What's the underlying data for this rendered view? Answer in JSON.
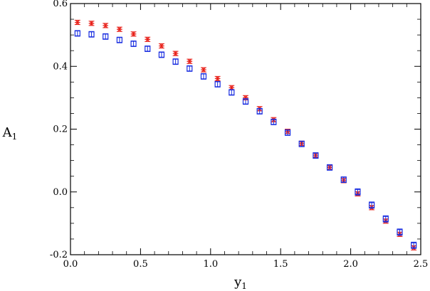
{
  "chart_data": {
    "type": "scatter",
    "title": "",
    "xlabel": {
      "main": "y",
      "sub": "1"
    },
    "ylabel": {
      "main": "A",
      "sub": "1"
    },
    "xlim": [
      0.0,
      2.5
    ],
    "ylim": [
      -0.2,
      0.6
    ],
    "x_ticks": [
      "0.0",
      "0.5",
      "1.0",
      "1.5",
      "2.0",
      "2.5"
    ],
    "y_ticks": [
      "-0.2",
      "0.0",
      "0.2",
      "0.4",
      "0.6"
    ],
    "grid": false,
    "legend": "none",
    "series": [
      {
        "marker": "star",
        "color": "#e8211a",
        "x": [
          0.05,
          0.15,
          0.25,
          0.35,
          0.45,
          0.55,
          0.65,
          0.75,
          0.85,
          0.95,
          1.05,
          1.15,
          1.25,
          1.35,
          1.45,
          1.55,
          1.65,
          1.75,
          1.85,
          1.95,
          2.05,
          2.15,
          2.25,
          2.35,
          2.45
        ],
        "y": [
          0.54,
          0.537,
          0.53,
          0.518,
          0.503,
          0.486,
          0.465,
          0.441,
          0.416,
          0.389,
          0.361,
          0.332,
          0.3,
          0.265,
          0.23,
          0.193,
          0.155,
          0.117,
          0.078,
          0.036,
          -0.006,
          -0.05,
          -0.093,
          -0.135,
          -0.178
        ],
        "err": [
          0.007,
          0.007,
          0.007,
          0.007,
          0.007,
          0.007,
          0.007,
          0.007,
          0.007,
          0.007,
          0.007,
          0.007,
          0.007,
          0.007,
          0.007,
          0.007,
          0.007,
          0.007,
          0.007,
          0.007,
          0.007,
          0.007,
          0.007,
          0.007,
          0.007
        ]
      },
      {
        "marker": "square",
        "color": "#1a2ee0",
        "x": [
          0.05,
          0.15,
          0.25,
          0.35,
          0.45,
          0.55,
          0.65,
          0.75,
          0.85,
          0.95,
          1.05,
          1.15,
          1.25,
          1.35,
          1.45,
          1.55,
          1.65,
          1.75,
          1.85,
          1.95,
          2.05,
          2.15,
          2.25,
          2.35,
          2.45
        ],
        "y": [
          0.505,
          0.502,
          0.495,
          0.484,
          0.472,
          0.456,
          0.437,
          0.415,
          0.393,
          0.368,
          0.343,
          0.317,
          0.288,
          0.257,
          0.223,
          0.189,
          0.153,
          0.116,
          0.078,
          0.039,
          0.0,
          -0.042,
          -0.086,
          -0.128,
          -0.17
        ],
        "err": [
          0.009,
          0.009,
          0.009,
          0.009,
          0.009,
          0.009,
          0.009,
          0.009,
          0.009,
          0.009,
          0.009,
          0.009,
          0.009,
          0.009,
          0.009,
          0.009,
          0.009,
          0.009,
          0.009,
          0.009,
          0.01,
          0.01,
          0.01,
          0.01,
          0.01
        ]
      }
    ]
  }
}
